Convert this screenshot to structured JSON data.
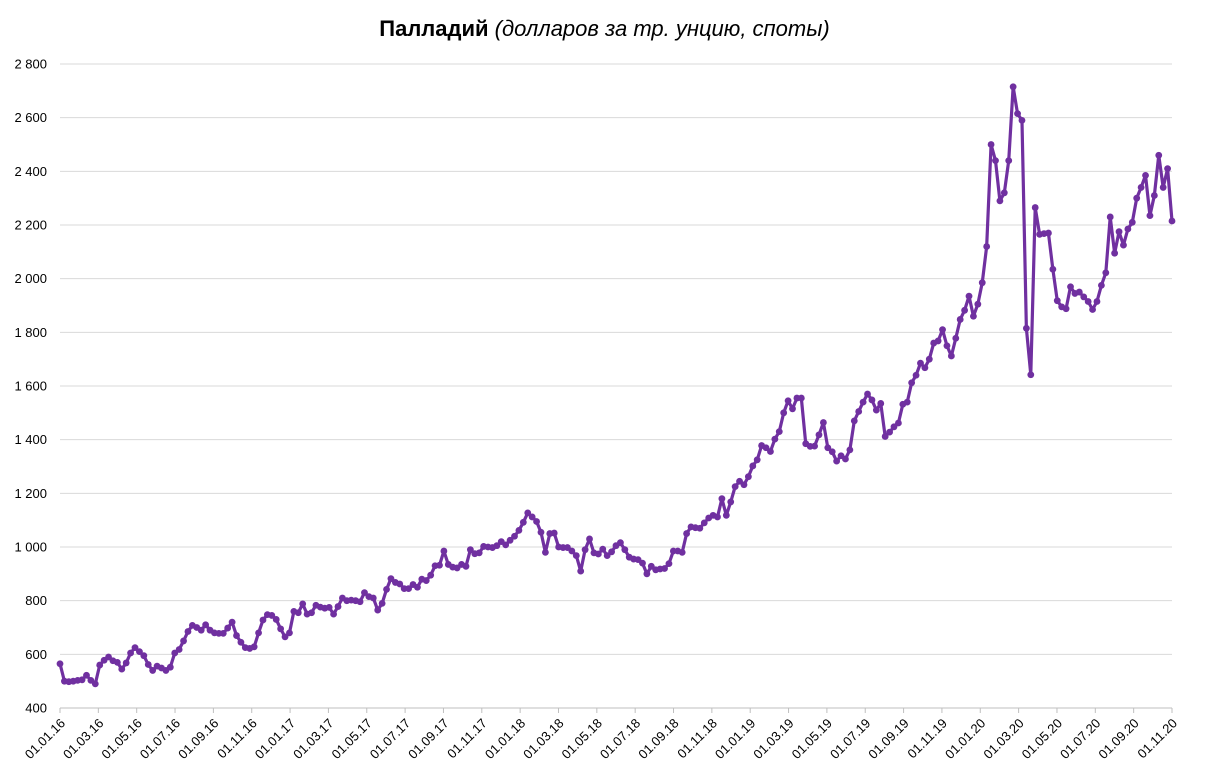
{
  "chart_data": {
    "type": "line",
    "title_bold": "Палладий",
    "title_italic": "(долларов за тр. унцию, споты)",
    "xlabel": "",
    "ylabel": "",
    "ylim": [
      400,
      2800
    ],
    "yticks": [
      400,
      600,
      800,
      1000,
      1200,
      1400,
      1600,
      1800,
      2000,
      2200,
      2400,
      2600,
      2800
    ],
    "ytick_labels": [
      "400",
      "600",
      "800",
      "1 000",
      "1 200",
      "1 400",
      "1 600",
      "1 800",
      "2 000",
      "2 200",
      "2 400",
      "2 600",
      "2 800"
    ],
    "xticks": [
      "01.01.16",
      "01.03.16",
      "01.05.16",
      "01.07.16",
      "01.09.16",
      "01.11.16",
      "01.01.17",
      "01.03.17",
      "01.05.17",
      "01.07.17",
      "01.09.17",
      "01.11.17",
      "01.01.18",
      "01.03.18",
      "01.05.18",
      "01.07.18",
      "01.09.18",
      "01.11.18",
      "01.01.19",
      "01.03.19",
      "01.05.19",
      "01.07.19",
      "01.09.19",
      "01.11.19",
      "01.01.20",
      "01.03.20",
      "01.05.20",
      "01.07.20",
      "01.09.20",
      "01.11.20"
    ],
    "grid": true,
    "legend": "none",
    "color": "#7030a0",
    "x_period": "weekly, 01.01.16 – 01.11.20",
    "values": [
      565,
      500,
      498,
      500,
      503,
      505,
      522,
      503,
      490,
      560,
      578,
      590,
      576,
      570,
      545,
      568,
      605,
      625,
      610,
      595,
      562,
      540,
      556,
      549,
      540,
      552,
      605,
      618,
      650,
      685,
      708,
      700,
      690,
      710,
      690,
      680,
      678,
      678,
      698,
      720,
      670,
      645,
      625,
      622,
      628,
      680,
      728,
      748,
      745,
      730,
      695,
      665,
      680,
      760,
      755,
      788,
      750,
      755,
      783,
      776,
      772,
      775,
      750,
      778,
      810,
      800,
      802,
      800,
      796,
      830,
      815,
      810,
      765,
      790,
      842,
      882,
      868,
      862,
      845,
      845,
      860,
      850,
      880,
      875,
      895,
      930,
      932,
      985,
      935,
      925,
      922,
      935,
      928,
      990,
      975,
      978,
      1002,
      1000,
      998,
      1005,
      1020,
      1008,
      1025,
      1040,
      1062,
      1092,
      1127,
      1112,
      1095,
      1055,
      980,
      1050,
      1052,
      1000,
      998,
      998,
      985,
      968,
      910,
      990,
      1030,
      978,
      974,
      992,
      968,
      982,
      1005,
      1016,
      990,
      962,
      955,
      953,
      940,
      900,
      928,
      915,
      918,
      920,
      938,
      985,
      985,
      980,
      1050,
      1075,
      1072,
      1070,
      1090,
      1108,
      1118,
      1112,
      1180,
      1118,
      1168,
      1225,
      1245,
      1232,
      1262,
      1302,
      1325,
      1378,
      1370,
      1356,
      1402,
      1430,
      1500,
      1545,
      1515,
      1555,
      1555,
      1385,
      1375,
      1376,
      1418,
      1464,
      1370,
      1355,
      1320,
      1340,
      1328,
      1362,
      1470,
      1505,
      1540,
      1570,
      1548,
      1510,
      1535,
      1412,
      1428,
      1448,
      1462,
      1532,
      1540,
      1612,
      1640,
      1685,
      1668,
      1700,
      1760,
      1768,
      1810,
      1750,
      1712,
      1778,
      1848,
      1882,
      1935,
      1860,
      1905,
      1985,
      2120,
      2500,
      2440,
      2290,
      2320,
      2440,
      2715,
      2615,
      2590,
      1815,
      1642,
      2265,
      2165,
      2168,
      2170,
      2035,
      1918,
      1895,
      1888,
      1970,
      1945,
      1950,
      1932,
      1915,
      1885,
      1915,
      1975,
      2022,
      2230,
      2095,
      2175,
      2125,
      2185,
      2210,
      2300,
      2340,
      2385,
      2235,
      2310,
      2460,
      2340,
      2410,
      2215
    ]
  }
}
